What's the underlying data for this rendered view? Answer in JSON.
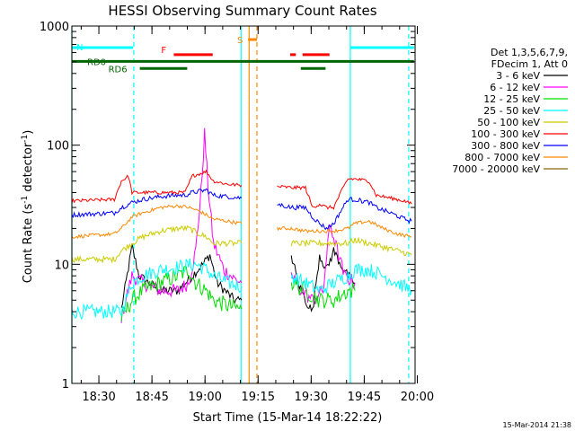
{
  "chart_data": {
    "type": "line",
    "title": "HESSI Observing Summary Count Rates",
    "xlabel": "Start Time (15-Mar-14 18:22:22)",
    "ylabel_main": "Count Rate (s",
    "ylabel_sup1": "-1",
    "ylabel_mid": " detector",
    "ylabel_sup2": "-1",
    "ylabel_end": ")",
    "x_unit": "minutes after 18:22:22 UT",
    "xlim": [
      0,
      97
    ],
    "ylim": [
      1,
      1000
    ],
    "yscale": "log",
    "x_ticks": [
      {
        "v": 7.63,
        "label": "18:30"
      },
      {
        "v": 22.63,
        "label": "18:45"
      },
      {
        "v": 37.63,
        "label": "19:00"
      },
      {
        "v": 52.63,
        "label": "19:15"
      },
      {
        "v": 67.63,
        "label": "19:30"
      },
      {
        "v": 82.63,
        "label": "19:45"
      },
      {
        "v": 97.63,
        "label": "20:00"
      }
    ],
    "y_ticks": [
      {
        "v": 1,
        "label": "1"
      },
      {
        "v": 10,
        "label": "10"
      },
      {
        "v": 100,
        "label": "100"
      },
      {
        "v": 1000,
        "label": "1000"
      }
    ],
    "legend_header": [
      "Det 1,3,5,6,7,9,",
      "FDecim 1, Att 0"
    ],
    "series": [
      {
        "name": "3 - 6 keV",
        "color": "#000000",
        "points": [
          [
            14,
            4.2
          ],
          [
            17,
            14
          ],
          [
            19,
            8
          ],
          [
            25,
            6
          ],
          [
            30,
            6
          ],
          [
            34,
            8
          ],
          [
            37,
            10
          ],
          [
            39,
            12
          ],
          [
            41,
            7
          ],
          [
            46,
            5
          ],
          [
            48,
            5
          ]
        ]
      },
      {
        "name": "6 - 12 keV",
        "color": "#ff00ff",
        "points": [
          [
            14,
            3.6
          ],
          [
            17,
            8
          ],
          [
            20,
            7
          ],
          [
            25,
            6
          ],
          [
            30,
            6
          ],
          [
            33,
            7
          ],
          [
            35,
            13
          ],
          [
            36.5,
            40
          ],
          [
            37.5,
            125
          ],
          [
            38.5,
            45
          ],
          [
            40,
            15
          ],
          [
            43,
            9
          ],
          [
            46,
            7.5
          ],
          [
            48,
            7
          ]
        ]
      },
      {
        "name": "12 - 25 keV",
        "color": "#00dd00",
        "points": [
          [
            14,
            3.5
          ],
          [
            17,
            5
          ],
          [
            20,
            6
          ],
          [
            25,
            7
          ],
          [
            30,
            8
          ],
          [
            33,
            9
          ],
          [
            35,
            7
          ],
          [
            38,
            6
          ],
          [
            40,
            5
          ],
          [
            44,
            4.5
          ],
          [
            48,
            4.2
          ]
        ]
      },
      {
        "name": "25 - 50 keV",
        "color": "#00ffff",
        "points": [
          [
            0,
            4
          ],
          [
            14,
            4
          ],
          [
            17,
            7
          ],
          [
            20,
            8
          ],
          [
            25,
            9
          ],
          [
            30,
            9.5
          ],
          [
            35,
            10
          ],
          [
            38,
            9
          ],
          [
            40,
            8
          ],
          [
            44,
            7
          ],
          [
            48,
            6.5
          ]
        ]
      },
      {
        "name": "50 - 100 keV",
        "color": "#cccc00",
        "points": [
          [
            0,
            11
          ],
          [
            12,
            11
          ],
          [
            14,
            13
          ],
          [
            17,
            15
          ],
          [
            20,
            17
          ],
          [
            25,
            19
          ],
          [
            30,
            20
          ],
          [
            33,
            20
          ],
          [
            36,
            18
          ],
          [
            38,
            17
          ],
          [
            40,
            15
          ],
          [
            44,
            15
          ],
          [
            48,
            15
          ]
        ]
      },
      {
        "name": "100 - 300 keV",
        "color": "#ff0000",
        "points": [
          [
            0,
            34
          ],
          [
            12,
            35
          ],
          [
            14,
            50
          ],
          [
            16,
            55
          ],
          [
            17,
            40
          ],
          [
            20,
            40
          ],
          [
            25,
            40
          ],
          [
            30,
            40
          ],
          [
            32,
            40
          ],
          [
            34,
            55
          ],
          [
            38,
            60
          ],
          [
            40,
            50
          ],
          [
            44,
            47
          ],
          [
            48,
            46
          ]
        ]
      },
      {
        "name": "300 - 800 keV",
        "color": "#0000ff",
        "points": [
          [
            0,
            26
          ],
          [
            12,
            27
          ],
          [
            14,
            30
          ],
          [
            17,
            33
          ],
          [
            20,
            35
          ],
          [
            25,
            37
          ],
          [
            30,
            38
          ],
          [
            32,
            38
          ],
          [
            34,
            40
          ],
          [
            38,
            42
          ],
          [
            40,
            38
          ],
          [
            44,
            37
          ],
          [
            48,
            36
          ]
        ]
      },
      {
        "name": "800 - 7000 keV",
        "color": "#ff8800",
        "points": [
          [
            0,
            17
          ],
          [
            12,
            18
          ],
          [
            14,
            20
          ],
          [
            17,
            25
          ],
          [
            20,
            27
          ],
          [
            25,
            30
          ],
          [
            30,
            31
          ],
          [
            33,
            30
          ],
          [
            36,
            28
          ],
          [
            40,
            24
          ],
          [
            44,
            23
          ],
          [
            48,
            22
          ]
        ]
      },
      {
        "name": "7000 - 20000 keV",
        "color": "#886600",
        "points": []
      }
    ],
    "series_after": [
      {
        "name": "3 - 6 keV",
        "color": "#000000",
        "points": [
          [
            62,
            12
          ],
          [
            64,
            7
          ],
          [
            66,
            5
          ],
          [
            68,
            4
          ],
          [
            70,
            12
          ],
          [
            72,
            9
          ],
          [
            74,
            13
          ],
          [
            76,
            10
          ],
          [
            78,
            8
          ],
          [
            80,
            7
          ]
        ]
      },
      {
        "name": "6 - 12 keV",
        "color": "#ff00ff",
        "points": [
          [
            62,
            8
          ],
          [
            65,
            6
          ],
          [
            68,
            5
          ],
          [
            71,
            6
          ],
          [
            73,
            22
          ],
          [
            75,
            13
          ],
          [
            77,
            8
          ],
          [
            80,
            7
          ]
        ]
      },
      {
        "name": "12 - 25 keV",
        "color": "#00dd00",
        "points": [
          [
            62,
            7
          ],
          [
            66,
            6
          ],
          [
            70,
            5
          ],
          [
            74,
            5
          ],
          [
            78,
            6
          ],
          [
            80,
            6
          ]
        ]
      },
      {
        "name": "25 - 50 keV",
        "color": "#00ffff",
        "points": [
          [
            62,
            8
          ],
          [
            66,
            7
          ],
          [
            70,
            6
          ],
          [
            74,
            7
          ],
          [
            78,
            8
          ],
          [
            80,
            9
          ],
          [
            84,
            9
          ],
          [
            88,
            8
          ],
          [
            92,
            7
          ],
          [
            96,
            6
          ]
        ]
      },
      {
        "name": "50 - 100 keV",
        "color": "#cccc00",
        "points": [
          [
            62,
            15
          ],
          [
            66,
            15
          ],
          [
            70,
            15
          ],
          [
            74,
            15
          ],
          [
            78,
            15
          ],
          [
            80,
            16
          ],
          [
            84,
            15
          ],
          [
            88,
            14
          ],
          [
            92,
            13
          ],
          [
            96,
            12
          ]
        ]
      },
      {
        "name": "100 - 300 keV",
        "color": "#ff0000",
        "points": [
          [
            58,
            45
          ],
          [
            62,
            44
          ],
          [
            64,
            44
          ],
          [
            66,
            44
          ],
          [
            68,
            30
          ],
          [
            70,
            32
          ],
          [
            72,
            30
          ],
          [
            74,
            30
          ],
          [
            76,
            40
          ],
          [
            78,
            52
          ],
          [
            80,
            52
          ],
          [
            84,
            50
          ],
          [
            86,
            38
          ],
          [
            90,
            36
          ],
          [
            94,
            34
          ],
          [
            96,
            32
          ]
        ]
      },
      {
        "name": "300 - 800 keV",
        "color": "#0000ff",
        "points": [
          [
            58,
            32
          ],
          [
            62,
            30
          ],
          [
            66,
            30
          ],
          [
            68,
            25
          ],
          [
            70,
            22
          ],
          [
            72,
            20
          ],
          [
            74,
            22
          ],
          [
            76,
            28
          ],
          [
            78,
            35
          ],
          [
            80,
            35
          ],
          [
            84,
            33
          ],
          [
            86,
            30
          ],
          [
            90,
            27
          ],
          [
            94,
            24
          ],
          [
            96,
            23
          ]
        ]
      },
      {
        "name": "800 - 7000 keV",
        "color": "#ff8800",
        "points": [
          [
            58,
            20
          ],
          [
            62,
            20
          ],
          [
            66,
            19
          ],
          [
            70,
            19
          ],
          [
            74,
            19
          ],
          [
            78,
            20
          ],
          [
            80,
            22
          ],
          [
            84,
            23
          ],
          [
            88,
            20
          ],
          [
            92,
            18
          ],
          [
            96,
            17
          ]
        ]
      }
    ],
    "vertical_lines": [
      {
        "x": 0,
        "color": "#00ffff",
        "style": "solid"
      },
      {
        "x": 17.5,
        "color": "#00ffff",
        "style": "dashed"
      },
      {
        "x": 47.8,
        "color": "#00ffff",
        "style": "solid"
      },
      {
        "x": 50.1,
        "color": "#ff8800",
        "style": "solid"
      },
      {
        "x": 52.3,
        "color": "#ff8800",
        "style": "dashed"
      },
      {
        "x": 78.7,
        "color": "#00ffff",
        "style": "solid"
      },
      {
        "x": 95.2,
        "color": "#00ffff",
        "style": "dashed"
      }
    ],
    "flag_bars": [
      {
        "label": "N",
        "color": "#00ffff",
        "segments": [
          [
            0,
            17.3
          ],
          [
            78.8,
            96.7
          ]
        ],
        "y": 660
      },
      {
        "label": "F",
        "color": "#ff0000",
        "segments": [
          [
            28.8,
            39.8
          ],
          [
            61.7,
            63.3
          ],
          [
            65.2,
            72.8
          ]
        ],
        "y": 575
      },
      {
        "label": "RD0",
        "color": "#006600",
        "segments": [
          [
            0,
            96.7
          ]
        ],
        "y": 505
      },
      {
        "label": "RD6",
        "color": "#006600",
        "segments": [
          [
            19.2,
            32.6
          ],
          [
            64.7,
            71.7
          ]
        ],
        "y": 440
      },
      {
        "label": "S",
        "color": "#ff8800",
        "segments": [
          [
            49.8,
            52.3
          ]
        ],
        "y": 770
      }
    ],
    "timestamp": "15-Mar-2014 21:38"
  }
}
